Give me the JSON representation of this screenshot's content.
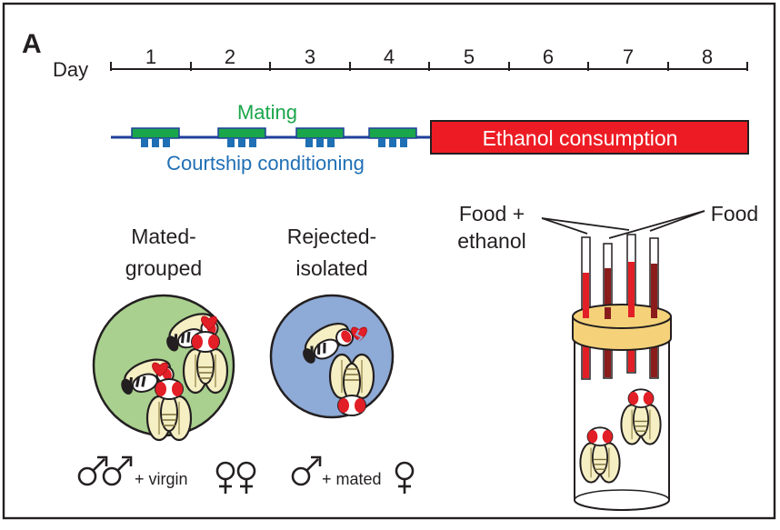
{
  "panel_label": "A",
  "timeline": {
    "axis_label": "Day",
    "days": [
      "1",
      "2",
      "3",
      "4",
      "5",
      "6",
      "7",
      "8"
    ]
  },
  "protocol": {
    "mating_label": "Mating",
    "courtship_label": "Courtship conditioning",
    "ethanol_label": "Ethanol consumption"
  },
  "groups": {
    "mated": {
      "title_line1": "Mated-",
      "title_line2": "grouped",
      "caption_text": "+ virgin",
      "male_symbols": "♂♂",
      "female_symbols": "♀♀"
    },
    "rejected": {
      "title_line1": "Rejected-",
      "title_line2": "isolated",
      "caption_text": "+ mated",
      "male_symbols": "♂",
      "female_symbols": "♀"
    }
  },
  "cafe_assay": {
    "label_ethanol_line1": "Food +",
    "label_ethanol_line2": "ethanol",
    "label_food": "Food"
  },
  "colors": {
    "mating": "#1aa64a",
    "courtship": "#1f6fb5",
    "ethanol": "#ed1c24",
    "mated_bg": "#a9d08e",
    "rejected_bg": "#8eaad6",
    "collar": "#f5d27a",
    "fly_body": "#f6efc4"
  }
}
